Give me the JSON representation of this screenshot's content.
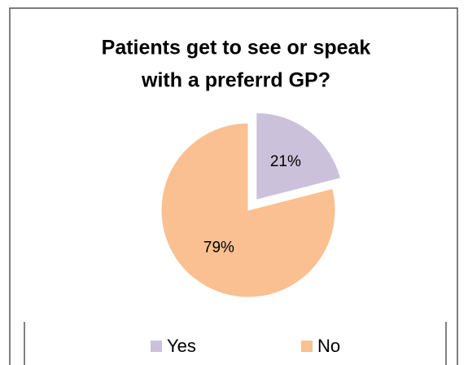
{
  "chart_data": {
    "type": "pie",
    "title": [
      "Patients get to see or speak",
      "with a preferrd GP?"
    ],
    "categories": [
      "Yes",
      "No"
    ],
    "values": [
      21,
      79
    ],
    "value_labels": [
      "21%",
      "79%"
    ],
    "colors": [
      "#ccc1da",
      "#fac091"
    ],
    "exploded": [
      true,
      false
    ],
    "legend": "bottom"
  }
}
